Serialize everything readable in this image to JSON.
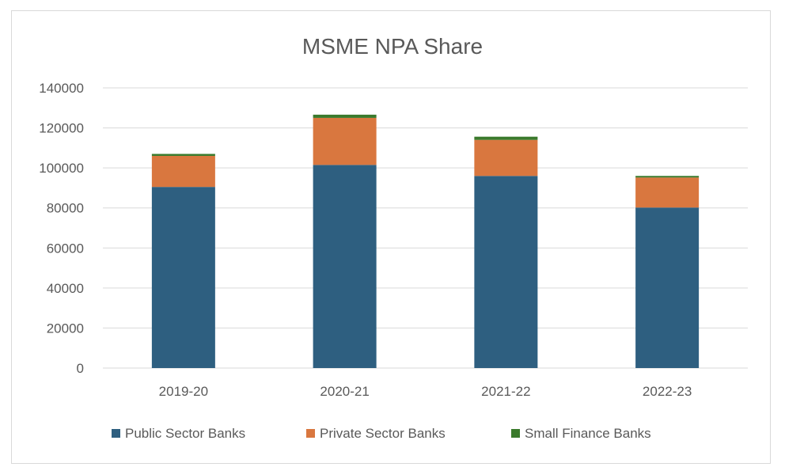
{
  "chart_data": {
    "type": "bar",
    "stacked": true,
    "title": "MSME NPA Share",
    "categories": [
      "2019-20",
      "2020-21",
      "2021-22",
      "2022-23"
    ],
    "series": [
      {
        "name": "Public Sector Banks",
        "color": "#2e5f80",
        "values": [
          90500,
          101500,
          96000,
          80200
        ]
      },
      {
        "name": "Private Sector Banks",
        "color": "#d9773f",
        "values": [
          15500,
          23500,
          18000,
          15000
        ]
      },
      {
        "name": "Small Finance Banks",
        "color": "#3a7a2c",
        "values": [
          1000,
          1600,
          1600,
          800
        ]
      }
    ],
    "ylim": [
      0,
      140000
    ],
    "yticks": [
      0,
      20000,
      40000,
      60000,
      80000,
      100000,
      120000,
      140000
    ],
    "grid": true,
    "legend_position": "bottom"
  }
}
